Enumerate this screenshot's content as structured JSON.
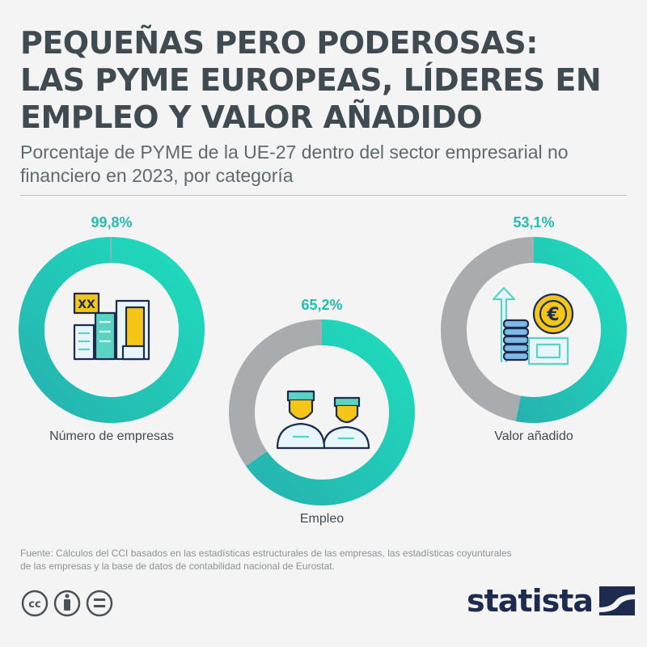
{
  "title_lines": [
    "PEQUEÑAS PERO PODEROSAS:",
    "LAS PYME EUROPEAS, LÍDERES EN",
    "EMPLEO Y VALOR AÑADIDO"
  ],
  "subtitle": "Porcentaje de PYME de la UE-27 dentro del sector empresarial no financiero en 2023, por categoría",
  "source": "Fuente: Cálculos del CCI basados en las estadísticas estructurales de las empresas, las estadísticas coyunturales de las empresas y la base de datos de contabilidad nacional de Eurostat.",
  "brand": "statista",
  "colors": {
    "accent_start": "#1fdcbc",
    "accent_end": "#26b3b0",
    "remainder": "#a9acaf",
    "value_text": "#26bcb0",
    "title_text": "#3f4a51",
    "brand": "#1d2b4f"
  },
  "chart_data": {
    "type": "pie",
    "subtype": "donut",
    "title": "PEQUEÑAS PERO PODEROSAS: LAS PYME EUROPEAS, LÍDERES EN EMPLEO Y VALOR AÑADIDO",
    "unit": "%",
    "charts": [
      {
        "category": "Número de empresas",
        "value": 99.8,
        "label": "99,8%",
        "icon": "buildings-icon"
      },
      {
        "category": "Empleo",
        "value": 65.2,
        "label": "65,2%",
        "icon": "workers-icon"
      },
      {
        "category": "Valor añadido",
        "value": 53.1,
        "label": "53,1%",
        "icon": "euro-coins-icon"
      }
    ]
  }
}
